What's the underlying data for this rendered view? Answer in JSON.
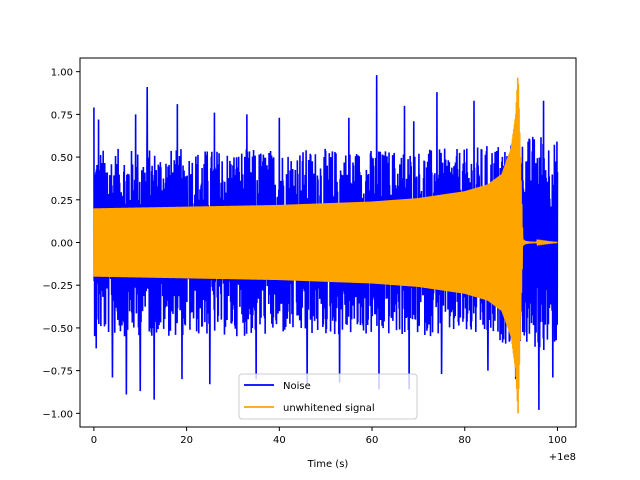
{
  "chart_data": {
    "type": "line",
    "title": "",
    "xlabel": "Time (s)",
    "ylabel": "",
    "x_offset_text": "+1e8",
    "xlim": [
      -3,
      104
    ],
    "ylim": [
      -1.08,
      1.08
    ],
    "x_ticks": [
      0,
      20,
      40,
      60,
      80,
      100
    ],
    "x_tick_labels": [
      "0",
      "20",
      "40",
      "60",
      "80",
      "100"
    ],
    "y_ticks": [
      -1.0,
      -0.75,
      -0.5,
      -0.25,
      0.0,
      0.25,
      0.5,
      0.75,
      1.0
    ],
    "y_tick_labels": [
      "−1.00",
      "−0.75",
      "−0.50",
      "−0.25",
      "0.00",
      "0.25",
      "0.50",
      "0.75",
      "1.00"
    ],
    "grid": false,
    "legend_position": "lower center",
    "series": [
      {
        "name": "Noise",
        "color": "#0000ff",
        "x_range": [
          0,
          100
        ],
        "upper_envelope": {
          "x": [
            0,
            20,
            40,
            60,
            80,
            90,
            92,
            96,
            100
          ],
          "y": [
            0.55,
            0.55,
            0.55,
            0.55,
            0.55,
            0.6,
            0.6,
            0.65,
            0.6
          ]
        },
        "lower_envelope": {
          "x": [
            0,
            20,
            40,
            60,
            80,
            90,
            92,
            96,
            100
          ],
          "y": [
            -0.55,
            -0.55,
            -0.55,
            -0.55,
            -0.55,
            -0.6,
            -0.6,
            -0.65,
            -0.6
          ]
        },
        "peaks": [
          {
            "x": 0.0,
            "y": 0.79
          },
          {
            "x": 0.5,
            "y": -0.62
          },
          {
            "x": 1.0,
            "y": 0.72
          },
          {
            "x": 4.0,
            "y": -0.79
          },
          {
            "x": 7.0,
            "y": -0.89
          },
          {
            "x": 9.0,
            "y": 0.75
          },
          {
            "x": 10.0,
            "y": -0.87
          },
          {
            "x": 11.5,
            "y": 0.91
          },
          {
            "x": 13.0,
            "y": -0.92
          },
          {
            "x": 18.0,
            "y": 0.81
          },
          {
            "x": 19.0,
            "y": -0.8
          },
          {
            "x": 25.0,
            "y": -0.83
          },
          {
            "x": 26.0,
            "y": 0.76
          },
          {
            "x": 33.0,
            "y": 0.75
          },
          {
            "x": 35.0,
            "y": -0.8
          },
          {
            "x": 40.0,
            "y": 0.73
          },
          {
            "x": 46.0,
            "y": -0.83
          },
          {
            "x": 53.0,
            "y": -0.82
          },
          {
            "x": 55.0,
            "y": 0.73
          },
          {
            "x": 61.0,
            "y": 0.98
          },
          {
            "x": 61.5,
            "y": -0.86
          },
          {
            "x": 67.0,
            "y": 0.8
          },
          {
            "x": 68.0,
            "y": -0.86
          },
          {
            "x": 69.0,
            "y": 0.71
          },
          {
            "x": 74.0,
            "y": 0.88
          },
          {
            "x": 75.0,
            "y": -0.77
          },
          {
            "x": 82.0,
            "y": 0.83
          },
          {
            "x": 85.0,
            "y": -0.75
          },
          {
            "x": 91.0,
            "y": -0.8
          },
          {
            "x": 96.0,
            "y": -0.98
          },
          {
            "x": 97.0,
            "y": 0.83
          },
          {
            "x": 99.0,
            "y": -0.79
          }
        ]
      },
      {
        "name": "unwhitened signal",
        "color": "#ffa500",
        "x": [
          0,
          20,
          40,
          60,
          70,
          80,
          85,
          88,
          90,
          91,
          91.5,
          92,
          92.5,
          93,
          94,
          100
        ],
        "upper_envelope": [
          0.2,
          0.21,
          0.22,
          0.24,
          0.26,
          0.3,
          0.34,
          0.4,
          0.55,
          0.75,
          1.0,
          0.5,
          0.02,
          0.01,
          0.005,
          0.0
        ],
        "lower_envelope": [
          -0.2,
          -0.21,
          -0.22,
          -0.24,
          -0.26,
          -0.3,
          -0.34,
          -0.4,
          -0.55,
          -0.75,
          -1.0,
          -0.5,
          -0.02,
          -0.01,
          -0.005,
          0.0
        ]
      }
    ]
  }
}
